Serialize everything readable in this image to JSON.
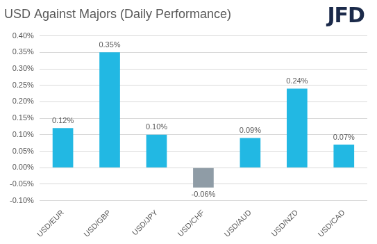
{
  "chart_data": {
    "type": "bar",
    "title": "USD Against Majors (Daily Performance)",
    "categories": [
      "USD/EUR",
      "USD/GBP",
      "USD/JPY",
      "USD/CHF",
      "USD/AUD",
      "USD/NZD",
      "USD/CAD"
    ],
    "values": [
      0.12,
      0.35,
      0.1,
      -0.06,
      0.09,
      0.24,
      0.07
    ],
    "value_labels": [
      "0.12%",
      "0.35%",
      "0.10%",
      "-0.06%",
      "0.09%",
      "0.24%",
      "0.07%"
    ],
    "colors": [
      "#22b8e3",
      "#22b8e3",
      "#22b8e3",
      "#8f9ca6",
      "#22b8e3",
      "#22b8e3",
      "#22b8e3"
    ],
    "ylim": [
      -0.1,
      0.4
    ],
    "yticks": [
      {
        "value": -0.1,
        "label": "-0.10%"
      },
      {
        "value": -0.05,
        "label": "-0.05%"
      },
      {
        "value": 0,
        "label": "0.00%"
      },
      {
        "value": 0.05,
        "label": "0.05%"
      },
      {
        "value": 0.1,
        "label": "0.10%"
      },
      {
        "value": 0.15,
        "label": "0.15%"
      },
      {
        "value": 0.2,
        "label": "0.20%"
      },
      {
        "value": 0.25,
        "label": "0.25%"
      },
      {
        "value": 0.3,
        "label": "0.30%"
      },
      {
        "value": 0.35,
        "label": "0.35%"
      },
      {
        "value": 0.4,
        "label": "0.40%"
      }
    ],
    "grid": true,
    "data_labels": true
  },
  "logo": "JFD"
}
